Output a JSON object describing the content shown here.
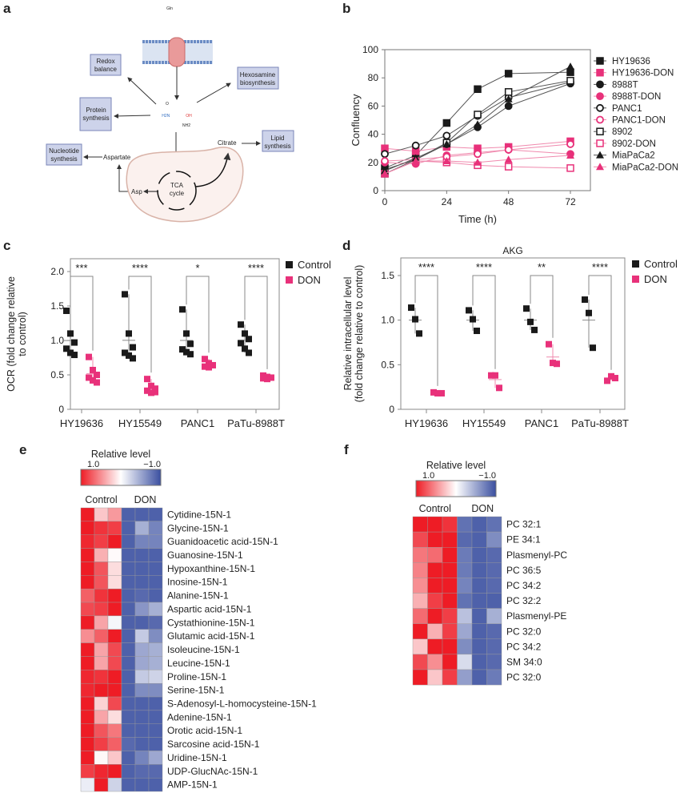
{
  "panel_labels": [
    "a",
    "b",
    "c",
    "d",
    "e",
    "f"
  ],
  "colors": {
    "control": "#1a1a1a",
    "don": "#e8317a",
    "heat_high": "#ee1c25",
    "heat_low": "#3a4fa0"
  },
  "diagram": {
    "gln": "Gln",
    "redox": [
      "Redox",
      "balance"
    ],
    "hexosamine": [
      "Hexosamine",
      "biosynthesis"
    ],
    "protein": [
      "Protein",
      "synthesis"
    ],
    "lipid": [
      "Lipid",
      "synthesis"
    ],
    "nucleotide": [
      "Nucleotide",
      "synthesis"
    ],
    "citrate": "Citrate",
    "aspartate": "Aspartate",
    "asp": "Asp",
    "tca": [
      "TCA",
      "cycle"
    ],
    "h2n": "H2N",
    "oh": "OH",
    "nh2": "NH2",
    "o": "O"
  },
  "chart_data": [
    {
      "type": "line",
      "panel": "b",
      "xlabel": "Time (h)",
      "ylabel": "Confluency",
      "x": [
        0,
        12,
        24,
        36,
        48,
        72
      ],
      "xticks": [
        0,
        24,
        48,
        72
      ],
      "yticks": [
        0,
        20,
        40,
        60,
        80,
        100
      ],
      "xlim": [
        0,
        80
      ],
      "ylim": [
        0,
        100
      ],
      "legend": "right",
      "series": [
        {
          "name": "HY19636",
          "marker": "square-filled",
          "color": "#1a1a1a",
          "values": [
            16,
            25,
            48,
            72,
            83,
            84
          ]
        },
        {
          "name": "HY19636-DON",
          "marker": "square-filled",
          "color": "#e8317a",
          "values": [
            30,
            28,
            31,
            30,
            31,
            35
          ]
        },
        {
          "name": "8988T",
          "marker": "circle-filled",
          "color": "#1a1a1a",
          "values": [
            15,
            22,
            33,
            45,
            60,
            76
          ]
        },
        {
          "name": "8988T-DON",
          "marker": "circle-filled",
          "color": "#e8317a",
          "values": [
            20,
            19,
            25,
            27,
            29,
            26
          ]
        },
        {
          "name": "PANC1",
          "marker": "circle-open",
          "color": "#1a1a1a",
          "values": [
            26,
            32,
            39,
            53,
            66,
            77
          ]
        },
        {
          "name": "PANC1-DON",
          "marker": "circle-open",
          "color": "#e8317a",
          "values": [
            21,
            22,
            24,
            26,
            29,
            33
          ]
        },
        {
          "name": "8902",
          "marker": "square-open",
          "color": "#1a1a1a",
          "values": [
            12,
            22,
            34,
            54,
            70,
            78
          ]
        },
        {
          "name": "8902-DON",
          "marker": "square-open",
          "color": "#e8317a",
          "values": [
            12,
            21,
            20,
            18,
            17,
            16
          ]
        },
        {
          "name": "MiaPaCa2",
          "marker": "triangle-filled",
          "color": "#1a1a1a",
          "values": [
            14,
            23,
            33,
            47,
            65,
            88
          ]
        },
        {
          "name": "MiaPaCa2-DON",
          "marker": "triangle-filled",
          "color": "#e8317a",
          "values": [
            12,
            21,
            21,
            20,
            22,
            25
          ]
        }
      ]
    },
    {
      "type": "scatter",
      "panel": "c",
      "title": "",
      "ylabel": [
        "OCR (fold change relative",
        "to control)"
      ],
      "categories": [
        "HY19636",
        "HY15549",
        "PANC1",
        "PaTu-8988T"
      ],
      "yticks": [
        "0",
        "0.5",
        "1.0",
        "1.5",
        "2.0"
      ],
      "ylim": [
        0,
        2.2
      ],
      "legend": "top-right",
      "series": [
        {
          "name": "Control",
          "values": [
            [
              1.43,
              1.1,
              0.97,
              0.88,
              0.82,
              0.79
            ],
            [
              1.67,
              1.1,
              0.9,
              0.82,
              0.78,
              0.74
            ],
            [
              1.45,
              1.1,
              0.95,
              0.87,
              0.83,
              0.8
            ],
            [
              1.23,
              1.1,
              1.02,
              0.96,
              0.88,
              0.82
            ]
          ]
        },
        {
          "name": "DON",
          "values": [
            [
              0.76,
              0.57,
              0.5,
              0.46,
              0.42,
              0.39
            ],
            [
              0.44,
              0.34,
              0.3,
              0.27,
              0.24,
              0.25
            ],
            [
              0.73,
              0.67,
              0.64,
              0.62,
              0.61
            ],
            [
              0.49,
              0.47,
              0.46,
              0.45,
              0.44
            ]
          ]
        }
      ],
      "significance": [
        "***",
        "****",
        "*",
        "****"
      ]
    },
    {
      "type": "scatter",
      "panel": "d",
      "title": "AKG",
      "ylabel": [
        "Relative intracellular level",
        "(fold change relative to control)"
      ],
      "categories": [
        "HY19636",
        "HY15549",
        "PANC1",
        "PaTu-8988T"
      ],
      "yticks": [
        "0",
        "0.5",
        "1.0",
        "1.5"
      ],
      "ylim": [
        0,
        1.7
      ],
      "legend": "top-right",
      "series": [
        {
          "name": "Control",
          "values": [
            [
              1.14,
              1.01,
              0.85
            ],
            [
              1.11,
              1.01,
              0.88
            ],
            [
              1.13,
              0.98,
              0.89
            ],
            [
              1.23,
              1.08,
              0.69
            ]
          ]
        },
        {
          "name": "DON",
          "values": [
            [
              0.19,
              0.18,
              0.18
            ],
            [
              0.38,
              0.38,
              0.24
            ],
            [
              0.73,
              0.52,
              0.51
            ],
            [
              0.32,
              0.37,
              0.35
            ]
          ]
        }
      ],
      "significance": [
        "****",
        "****",
        "**",
        "****"
      ]
    },
    {
      "type": "heatmap",
      "panel": "e",
      "colorbar_title": "Relative level",
      "colorbar_range": [
        "1.0",
        "−1.0"
      ],
      "column_groups": [
        "Control",
        "DON"
      ],
      "rows": [
        "Cytidine-15N-1",
        "Glycine-15N-1",
        "Guanidoacetic acid-15N-1",
        "Guanosine-15N-1",
        "Hypoxanthine-15N-1",
        "Inosine-15N-1",
        "Alanine-15N-1",
        "Aspartic acid-15N-1",
        "Cystathionine-15N-1",
        "Glutamic acid-15N-1",
        "Isoleucine-15N-1",
        "Leucine-15N-1",
        "Proline-15N-1",
        "Serine-15N-1",
        "S-Adenosyl-L-homocysteine-15N-1",
        "Adenine-15N-1",
        "Orotic acid-15N-1",
        "Sarcosine acid-15N-1",
        "Uridine-15N-1",
        "UDP-GlucNAc-15N-1",
        "AMP-15N-1"
      ],
      "values": [
        [
          1,
          0.25,
          0.45,
          -0.9,
          -0.9,
          -0.9
        ],
        [
          1,
          0.9,
          0.85,
          -0.9,
          -0.45,
          -0.7
        ],
        [
          0.95,
          0.85,
          1,
          -0.9,
          -0.7,
          -0.7
        ],
        [
          1,
          0.35,
          0.02,
          -0.9,
          -0.9,
          -0.9
        ],
        [
          1,
          0.75,
          0.15,
          -0.9,
          -0.9,
          -0.9
        ],
        [
          1,
          0.75,
          0.15,
          -0.9,
          -0.9,
          -0.9
        ],
        [
          0.7,
          0.9,
          1,
          -0.9,
          -0.85,
          -0.9
        ],
        [
          0.8,
          0.85,
          1,
          -0.9,
          -0.6,
          -0.45
        ],
        [
          1,
          0.4,
          -0.05,
          -0.9,
          -0.9,
          -0.85
        ],
        [
          0.5,
          0.7,
          1,
          -0.9,
          -0.3,
          -0.65
        ],
        [
          1,
          0.4,
          0.8,
          -0.9,
          -0.5,
          -0.45
        ],
        [
          1,
          0.4,
          0.8,
          -0.9,
          -0.5,
          -0.45
        ],
        [
          0.95,
          0.9,
          1,
          -0.9,
          -0.3,
          -0.25
        ],
        [
          0.95,
          1,
          1,
          -0.9,
          -0.65,
          -0.65
        ],
        [
          1,
          0.2,
          0.8,
          -0.9,
          -0.9,
          -0.9
        ],
        [
          1,
          0.4,
          0.15,
          -0.9,
          -0.9,
          -0.9
        ],
        [
          1,
          0.75,
          0.6,
          -0.9,
          -0.9,
          -0.9
        ],
        [
          1,
          0.85,
          0.7,
          -0.85,
          -0.9,
          -0.9
        ],
        [
          1,
          0.03,
          0.25,
          -0.9,
          -0.7,
          -0.5
        ],
        [
          0.85,
          0.95,
          1,
          -0.9,
          -0.85,
          -0.85
        ],
        [
          -0.1,
          1,
          -0.25,
          -0.9,
          -0.9,
          -0.9
        ]
      ]
    },
    {
      "type": "heatmap",
      "panel": "f",
      "colorbar_title": "Relative level",
      "colorbar_range": [
        "1.0",
        "−1.0"
      ],
      "column_groups": [
        "Control",
        "DON"
      ],
      "rows": [
        "PC 32:1",
        "PE 34:1",
        "Plasmenyl-PC",
        "PC 36:5",
        "PC 34:2",
        "PC 32:2",
        "Plasmenyl-PE",
        "PC 32:0",
        "PC 34:2",
        "SM 34:0",
        "PC 32:0"
      ],
      "values": [
        [
          1,
          1,
          0.9,
          -0.8,
          -0.9,
          -0.8
        ],
        [
          0.8,
          1,
          1,
          -0.85,
          -0.9,
          -0.65
        ],
        [
          0.6,
          0.65,
          1,
          -0.75,
          -0.9,
          -0.85
        ],
        [
          0.55,
          1,
          1,
          -0.75,
          -0.9,
          -0.85
        ],
        [
          0.5,
          1,
          1,
          -0.7,
          -0.9,
          -0.85
        ],
        [
          0.35,
          0.85,
          1,
          -0.8,
          -0.9,
          -0.9
        ],
        [
          0.65,
          1,
          0.85,
          -0.35,
          -0.9,
          -0.45
        ],
        [
          1,
          0.35,
          0.85,
          -0.5,
          -0.9,
          -0.85
        ],
        [
          0.25,
          1,
          1,
          -0.65,
          -0.9,
          -0.85
        ],
        [
          0.8,
          0.5,
          1,
          -0.2,
          -0.9,
          -0.85
        ],
        [
          1,
          0.25,
          0.85,
          -0.55,
          -0.9,
          -0.75
        ]
      ]
    }
  ]
}
